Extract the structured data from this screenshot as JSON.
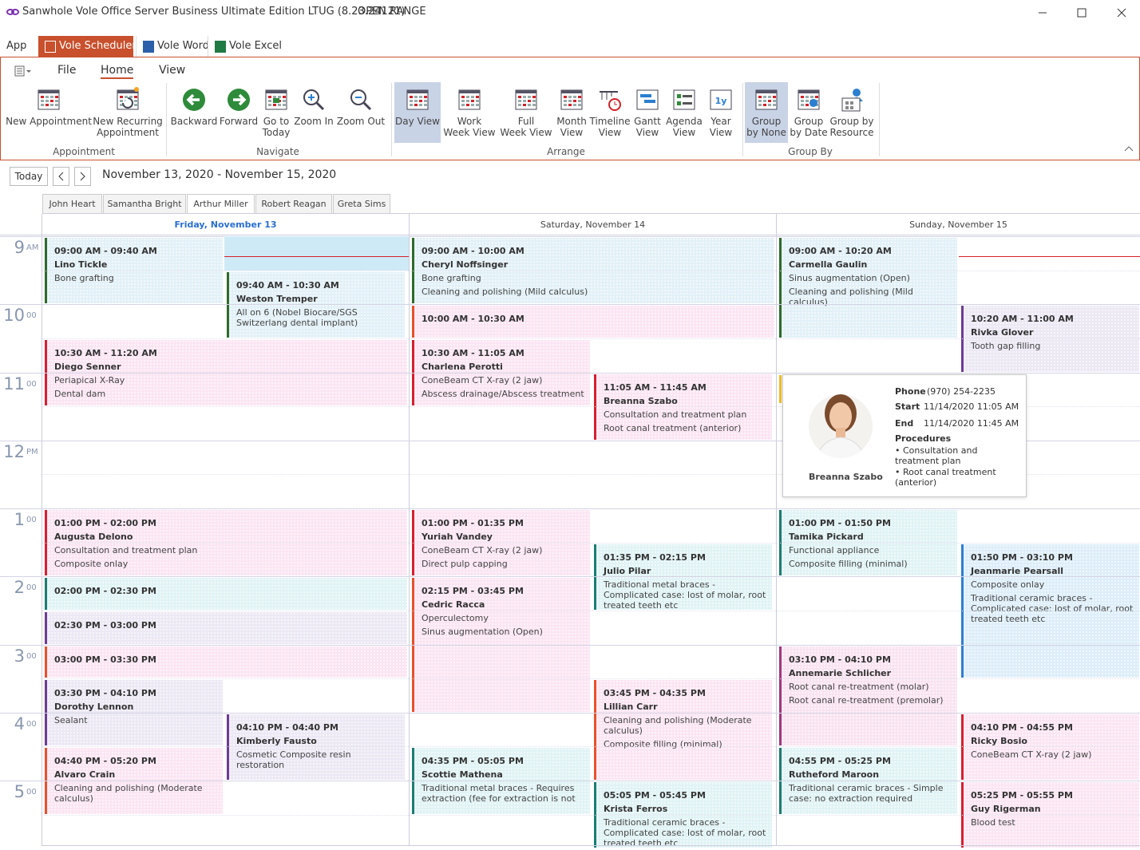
{
  "window": {
    "title": "Sanwhole Vole Office Server Business Ultimate Edition LTUG (8.23.24121)",
    "status": "OPEN RANGE"
  },
  "app_tabs": [
    "App",
    "Vole Scheduler",
    "Vole Word",
    "Vole Excel"
  ],
  "ribbon": {
    "tabs": [
      "File",
      "Home",
      "View"
    ],
    "groups": [
      {
        "label": "Appointment",
        "buttons": [
          "New Appointment",
          "New Recurring\nAppointment"
        ]
      },
      {
        "label": "Navigate",
        "buttons": [
          "Backward",
          "Forward",
          "Go to\nToday",
          "Zoom In",
          "Zoom Out"
        ]
      },
      {
        "label": "Arrange",
        "buttons": [
          "Day View",
          "Work\nWeek View",
          "Full\nWeek View",
          "Month\nView",
          "Timeline\nView",
          "Gantt\nView",
          "Agenda\nView",
          "Year\nView"
        ]
      },
      {
        "label": "Group By",
        "buttons": [
          "Group\nby None",
          "Group\nby Date",
          "Group by\nResource"
        ]
      }
    ]
  },
  "navigation": {
    "today": "Today",
    "range": "November 13, 2020 - November 15, 2020"
  },
  "resources": [
    "John Heart",
    "Samantha Bright",
    "Arthur Miller",
    "Robert Reagan",
    "Greta Sims"
  ],
  "time_labels": [
    {
      "hour": "9",
      "suffix": "AM"
    },
    {
      "hour": "10",
      "suffix": "00"
    },
    {
      "hour": "11",
      "suffix": "00"
    },
    {
      "hour": "12",
      "suffix": "PM"
    },
    {
      "hour": "1",
      "suffix": "00"
    },
    {
      "hour": "2",
      "suffix": "00"
    },
    {
      "hour": "3",
      "suffix": "00"
    },
    {
      "hour": "4",
      "suffix": "00"
    },
    {
      "hour": "5",
      "suffix": "00"
    }
  ],
  "days": [
    {
      "header": "Friday, November 13",
      "appointments": [
        {
          "time": "09:00 AM - 09:40 AM",
          "name": "Lino Tickle",
          "details": [
            "Bone grafting"
          ]
        },
        {
          "time": "09:40 AM - 10:30 AM",
          "name": "Weston Tremper",
          "details": [
            "All on 6 (Nobel Biocare/SGS Switzerlang dental implant)"
          ]
        },
        {
          "time": "10:30 AM - 11:20 AM",
          "name": "Diego Senner",
          "details": [
            "Periapical X-Ray",
            "Dental dam"
          ]
        },
        {
          "time": "01:00 PM - 02:00 PM",
          "name": "Augusta Delono",
          "details": [
            "Consultation and treatment plan",
            "Composite onlay"
          ]
        },
        {
          "time": "02:00 PM - 02:30 PM",
          "details": []
        },
        {
          "time": "02:30 PM - 03:00 PM",
          "details": []
        },
        {
          "time": "03:00 PM - 03:30 PM",
          "details": []
        },
        {
          "time": "03:30 PM - 04:10 PM",
          "name": "Dorothy Lennon",
          "details": [
            "Sealant"
          ]
        },
        {
          "time": "04:10 PM - 04:40 PM",
          "name": "Kimberly Fausto",
          "details": [
            "Cosmetic Composite resin restoration"
          ]
        },
        {
          "time": "04:40 PM - 05:20 PM",
          "name": "Alvaro Crain",
          "details": [
            "Cleaning and polishing (Moderate calculus)"
          ]
        }
      ]
    },
    {
      "header": "Saturday, November 14",
      "appointments": [
        {
          "time": "09:00 AM - 10:00 AM",
          "name": "Cheryl Noffsinger",
          "details": [
            "Bone grafting",
            "Cleaning and polishing (Mild calculus)"
          ]
        },
        {
          "time": "10:00 AM - 10:30 AM",
          "details": []
        },
        {
          "time": "10:30 AM - 11:05 AM",
          "name": "Charlena Perotti",
          "details": [
            "ConeBeam CT X-ray (2 jaw)",
            "Abscess drainage/Abscess treatment"
          ]
        },
        {
          "time": "11:05 AM - 11:45 AM",
          "name": "Breanna Szabo",
          "details": [
            "Consultation and treatment plan",
            "Root canal treatment (anterior)"
          ]
        },
        {
          "time": "01:00 PM - 01:35 PM",
          "name": "Yuriah Vandey",
          "details": [
            "ConeBeam CT X-ray (2 jaw)",
            "Direct pulp capping"
          ]
        },
        {
          "time": "01:35 PM - 02:15 PM",
          "name": "Julio Pilar",
          "details": [
            "Traditional metal braces - Complicated case: lost of molar, root treated teeth etc"
          ]
        },
        {
          "time": "02:15 PM - 03:45 PM",
          "name": "Cedric Racca",
          "details": [
            "Operculectomy",
            "Sinus augmentation (Open)"
          ]
        },
        {
          "time": "03:45 PM - 04:35 PM",
          "name": "Lillian Carr",
          "details": [
            "Cleaning and polishing (Moderate calculus)",
            "Composite filling (minimal)"
          ]
        },
        {
          "time": "04:35 PM - 05:05 PM",
          "name": "Scottie Mathena",
          "details": [
            "Traditional metal braces - Requires extraction (fee for extraction is not"
          ]
        },
        {
          "time": "05:05 PM - 05:45 PM",
          "name": "Krista Ferros",
          "details": [
            "Traditional ceramic braces - Complicated case: lost of molar, root treated teeth etc"
          ]
        }
      ]
    },
    {
      "header": "Sunday, November 15",
      "appointments": [
        {
          "time": "09:00 AM - 10:20 AM",
          "name": "Carmella Gaulin",
          "details": [
            "Sinus augmentation (Open)",
            "Cleaning and polishing (Mild calculus)"
          ]
        },
        {
          "time": "10:20 AM - 11:00 AM",
          "name": "Rivka Glover",
          "details": [
            "Tooth gap filling"
          ]
        },
        {
          "time": "01:00 PM - 01:50 PM",
          "name": "Tamika Pickard",
          "details": [
            "Functional appliance",
            "Composite filling (minimal)"
          ]
        },
        {
          "time": "01:50 PM - 03:10 PM",
          "name": "Jeanmarie Pearsall",
          "details": [
            "Composite onlay",
            "Traditional ceramic braces - Complicated case: lost of molar, root treated teeth etc"
          ]
        },
        {
          "time": "03:10 PM - 04:10 PM",
          "name": "Annemarie Schlicher",
          "details": [
            "Root canal re-treatment (molar)",
            "Root canal re-treatment (premolar)"
          ]
        },
        {
          "time": "04:10 PM - 04:55 PM",
          "name": "Ricky Bosio",
          "details": [
            "ConeBeam CT X-ray (2 jaw)"
          ]
        },
        {
          "time": "04:55 PM - 05:25 PM",
          "name": "Rutheford Maroon",
          "details": [
            "Traditional ceramic braces - Simple case: no extraction required"
          ]
        },
        {
          "time": "05:25 PM - 05:55 PM",
          "name": "Guy Rigerman",
          "details": [
            "Blood test"
          ]
        }
      ]
    }
  ],
  "tooltip": {
    "name": "Breanna Szabo",
    "phone_label": "Phone",
    "phone": "(970) 254-2235",
    "start_label": "Start",
    "start": "11/14/2020 11:05 AM",
    "end_label": "End",
    "end": "11/14/2020 11:45 AM",
    "procedures_label": "Procedures",
    "procedures": [
      "• Consultation and treatment plan",
      "• Root canal treatment (anterior)"
    ]
  }
}
